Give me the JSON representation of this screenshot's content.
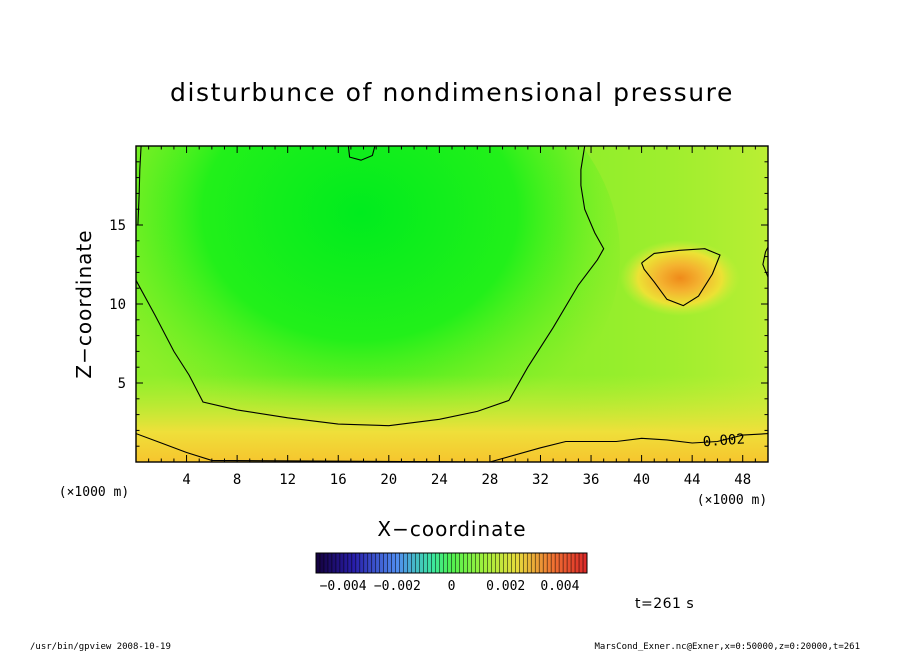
{
  "chart_data": {
    "type": "heatmap",
    "title": "disturbunce of nondimensional pressure",
    "xlabel": "X−coordinate",
    "ylabel": "Z−coordinate",
    "x_unit_left": "(×1000 m)",
    "x_unit_right": "(×1000 m)",
    "xlim": [
      0,
      50
    ],
    "ylim": [
      0,
      20
    ],
    "x_ticks": [
      4,
      8,
      12,
      16,
      20,
      24,
      28,
      32,
      36,
      40,
      44,
      48
    ],
    "y_ticks": [
      5,
      10,
      15
    ],
    "colorbar": {
      "min": -0.005,
      "max": 0.005,
      "tick_values": [
        -0.004,
        -0.002,
        0,
        0.002,
        0.004
      ],
      "tick_labels": [
        "−0.004",
        "−0.002",
        "0",
        "0.002",
        "0.004"
      ]
    },
    "contour_labels": [
      {
        "text": "0.002",
        "x": 46.5,
        "y": 1.4
      }
    ],
    "contours": {
      "upper_low": [
        [
          16.8,
          20
        ],
        [
          16.9,
          19.3
        ],
        [
          17.8,
          19.1
        ],
        [
          18.7,
          19.4
        ],
        [
          18.9,
          20
        ]
      ],
      "left_edge": [
        [
          0.4,
          20
        ],
        [
          0.3,
          18.5
        ],
        [
          0.25,
          17
        ],
        [
          0.15,
          15
        ]
      ],
      "main_dip": [
        [
          0,
          11.5
        ],
        [
          1.5,
          9.3
        ],
        [
          3,
          7.0
        ],
        [
          4.2,
          5.5
        ],
        [
          5.3,
          3.8
        ],
        [
          8,
          3.3
        ],
        [
          12,
          2.8
        ],
        [
          16,
          2.4
        ],
        [
          20,
          2.3
        ],
        [
          24,
          2.7
        ],
        [
          27,
          3.2
        ],
        [
          29.5,
          3.9
        ],
        [
          31,
          6.0
        ],
        [
          33,
          8.5
        ],
        [
          35,
          11.2
        ],
        [
          36.5,
          12.8
        ],
        [
          37,
          13.5
        ],
        [
          36.3,
          14.5
        ],
        [
          35.5,
          16.0
        ],
        [
          35.2,
          17.5
        ],
        [
          35.2,
          18.5
        ],
        [
          35.5,
          20
        ]
      ],
      "right_high": [
        [
          40,
          12.6
        ],
        [
          41,
          13.2
        ],
        [
          43,
          13.4
        ],
        [
          45,
          13.5
        ],
        [
          46.2,
          13.1
        ],
        [
          45.6,
          11.9
        ],
        [
          44.5,
          10.5
        ],
        [
          43.3,
          9.9
        ],
        [
          42,
          10.3
        ],
        [
          41,
          11.4
        ],
        [
          40.2,
          12.2
        ],
        [
          40,
          12.6
        ]
      ],
      "right_edge": [
        [
          50,
          11.7
        ],
        [
          49.6,
          12.5
        ],
        [
          49.8,
          13.3
        ],
        [
          50,
          13.6
        ]
      ],
      "bottom": [
        [
          0,
          1.8
        ],
        [
          2,
          1.2
        ],
        [
          4,
          0.6
        ],
        [
          6,
          0.1
        ],
        [
          28,
          0.0
        ],
        [
          32,
          0.9
        ],
        [
          34,
          1.3
        ],
        [
          36,
          1.3
        ],
        [
          38,
          1.3
        ],
        [
          40,
          1.5
        ],
        [
          42,
          1.4
        ],
        [
          44,
          1.2
        ],
        [
          46,
          1.3
        ],
        [
          48,
          1.7
        ],
        [
          50,
          1.8
        ]
      ]
    }
  },
  "footer": {
    "left": "/usr/bin/gpview   2008-10-19",
    "right": "MarsCond_Exner.nc@Exner,x=0:50000,z=0:20000,t=261"
  },
  "time_label": "t=261 s"
}
